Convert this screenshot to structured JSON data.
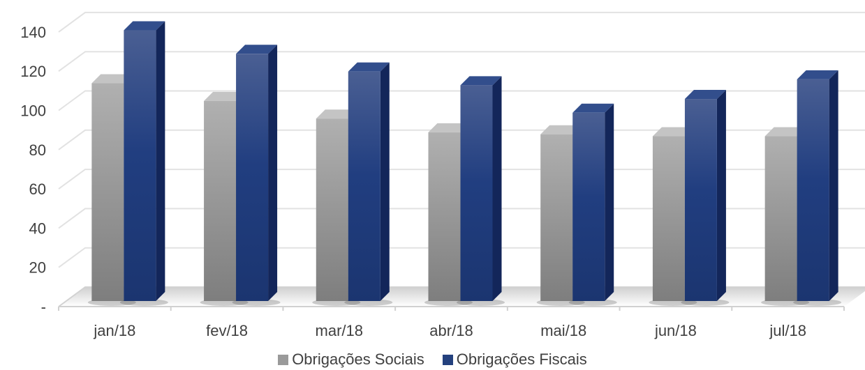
{
  "chart_data": {
    "type": "bar",
    "categories": [
      "jan/18",
      "fev/18",
      "mar/18",
      "abr/18",
      "mai/18",
      "jun/18",
      "jul/18"
    ],
    "series": [
      {
        "name": "Obrigações Sociais",
        "values": [
          111,
          102,
          93,
          86,
          85,
          84,
          84
        ],
        "color": "#9a9a9a"
      },
      {
        "name": "Obrigações Fiscais",
        "values": [
          138,
          126,
          117,
          110,
          96,
          103,
          113
        ],
        "color": "#24417e"
      }
    ],
    "yticks": [
      "-",
      "20",
      "40",
      "60",
      "80",
      "100",
      "120",
      "140"
    ],
    "ylim": [
      0,
      140
    ],
    "grid": true,
    "legend_position": "bottom",
    "style": "3d-column"
  }
}
